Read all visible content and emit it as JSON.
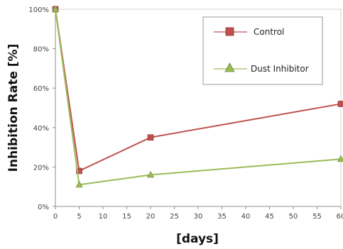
{
  "chart_data": {
    "type": "line",
    "xlabel": "[days]",
    "ylabel": "Inhibition Rate [%]",
    "xlim": [
      0,
      60
    ],
    "ylim": [
      0,
      100
    ],
    "x_ticks": [
      "0",
      "5",
      "10",
      "15",
      "20",
      "25",
      "30",
      "35",
      "40",
      "45",
      "50",
      "55",
      "60"
    ],
    "y_ticks": [
      "0%",
      "20%",
      "40%",
      "60%",
      "80%",
      "100%"
    ],
    "grid": false,
    "legend_position": "top-right",
    "series": [
      {
        "name": "Control",
        "color": "#c0504d",
        "marker": "square",
        "x": [
          0,
          5,
          20,
          60
        ],
        "y": [
          100,
          18,
          35,
          52
        ]
      },
      {
        "name": "Dust Inhibitor",
        "color": "#9bbb59",
        "marker": "triangle",
        "x": [
          0,
          5,
          20,
          60
        ],
        "y": [
          100,
          11,
          16,
          24
        ]
      }
    ]
  }
}
